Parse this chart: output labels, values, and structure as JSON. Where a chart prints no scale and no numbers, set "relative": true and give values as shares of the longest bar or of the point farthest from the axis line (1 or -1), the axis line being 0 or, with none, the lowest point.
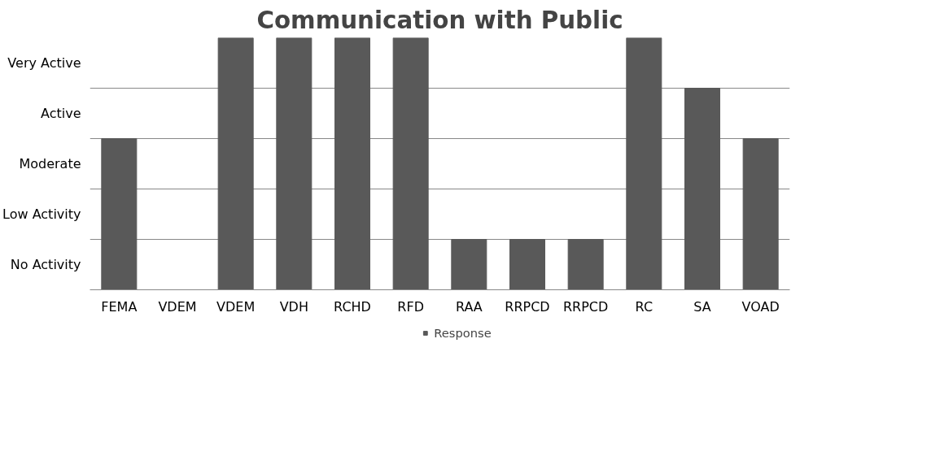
{
  "chart_data": {
    "type": "bar",
    "title": "Communication with Public",
    "relative": true,
    "categories": [
      "FEMA",
      "VDEM",
      "VDEM",
      "VDH",
      "RCHD",
      "RFD",
      "RAA",
      "RRPCD",
      "RRPCD",
      "RC",
      "SA",
      "VOAD"
    ],
    "series": [
      {
        "name": "Response",
        "color": "#595959",
        "values": [
          0.6,
          0,
          1,
          1,
          1,
          1,
          0.2,
          0.2,
          0.2,
          1,
          0.8,
          0.6
        ]
      }
    ],
    "annotations": [
      "No Activity",
      "Low Activity",
      "Moderate",
      "Active",
      "Very Active"
    ],
    "grid": "y",
    "legend": "bottom"
  }
}
